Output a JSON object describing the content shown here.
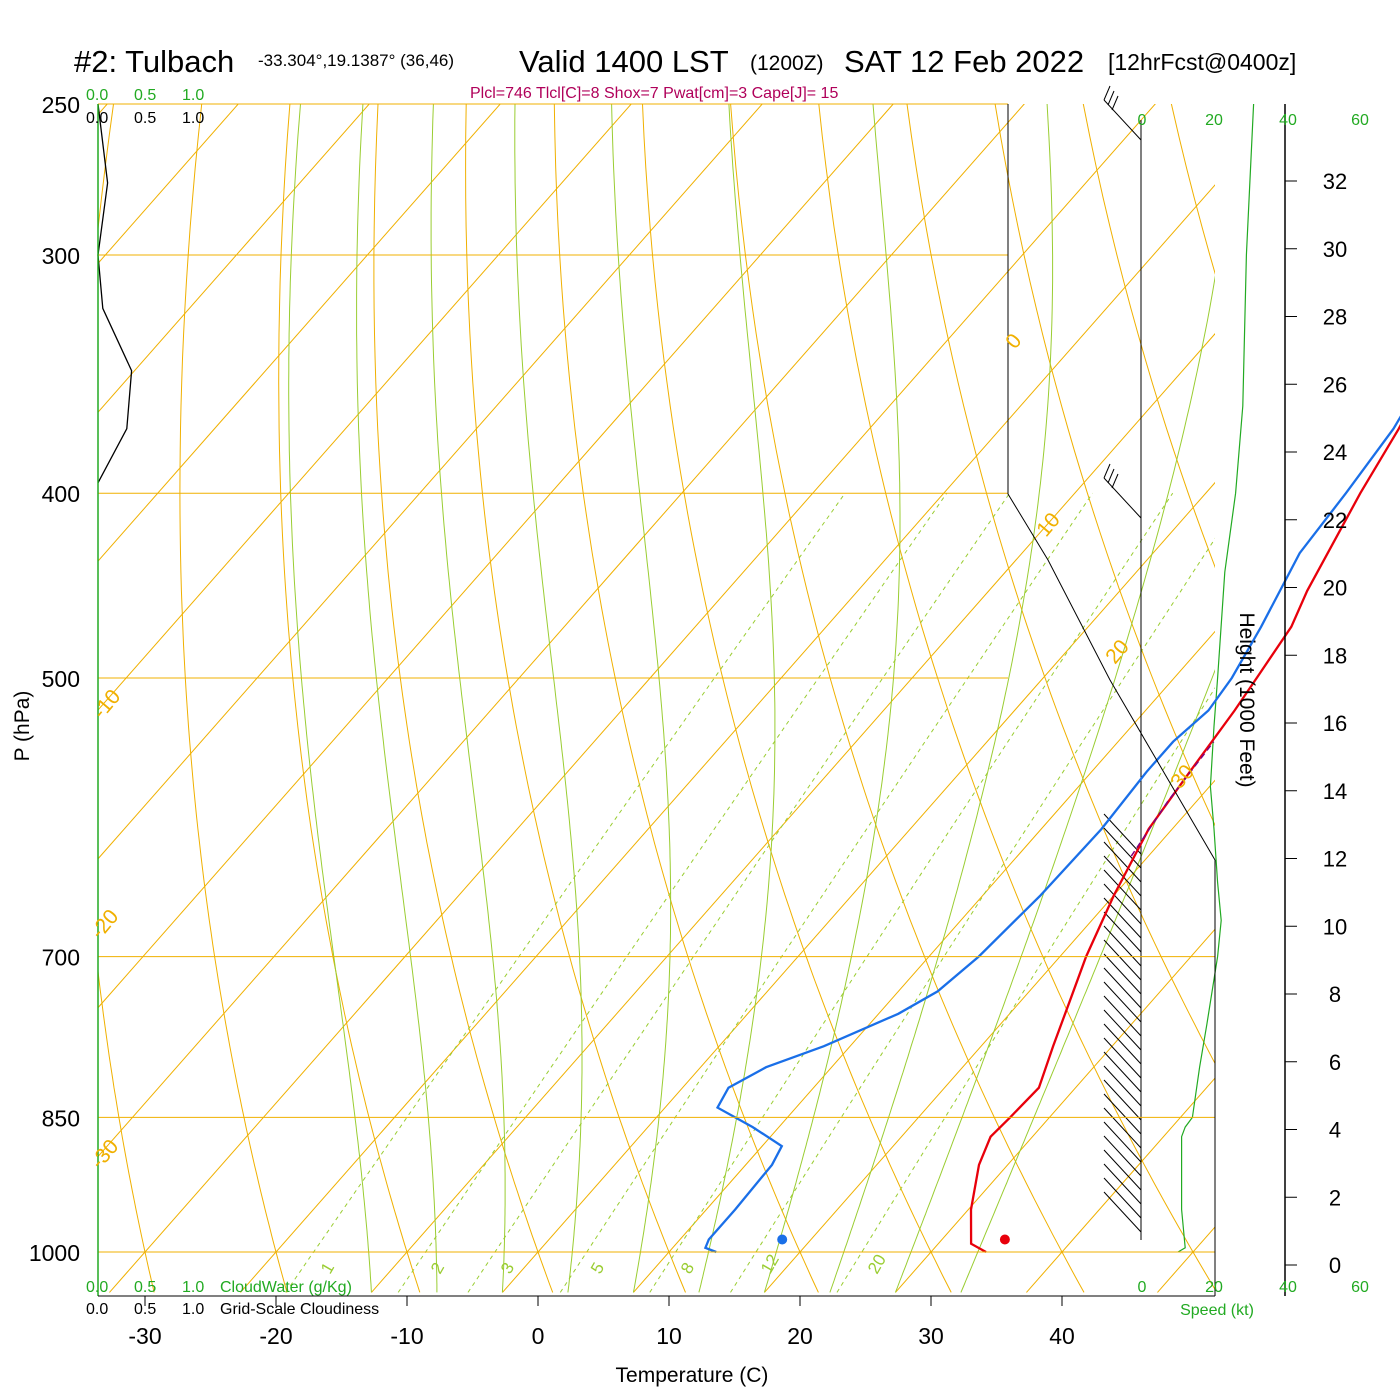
{
  "header": {
    "station": "#2: Tulbach",
    "coords": "-33.304°,19.1387° (36,46)",
    "valid": "Valid 1400 LST",
    "zulu": "(1200Z)",
    "date": "SAT 12 Feb 2022",
    "forecast": "[12hrFcst@0400z]",
    "indices": "Plcl=746 Tlcl[C]=8 Shox=7 Pwat[cm]=3 Cape[J]= 15"
  },
  "colors": {
    "temperature": "#e8000b",
    "dewpoint": "#1a6fe8",
    "isotherm": "#f0b000",
    "dry_adiabat": "#f0b000",
    "moist_adiabat": "#9acd32",
    "mixing_ratio": "#9acd32",
    "parcel": "#800080",
    "green_text": "#22aa22",
    "indices_text": "#b0005a"
  },
  "labels": {
    "x_axis": "Temperature (C)",
    "y_axis": "P (hPa)",
    "height_axis": "Height (1000 Feet)",
    "speed_axis": "Speed (kt)",
    "cloud_water": "CloudWater (g/Kg)",
    "cloudiness": "Grid-Scale Cloudiness"
  },
  "scales": {
    "cloud_green": [
      "0.0",
      "0.5",
      "1.0"
    ],
    "cloud_black": [
      "0.0",
      "0.5",
      "1.0"
    ],
    "speed_ticks": [
      "0",
      "20",
      "40",
      "60"
    ]
  },
  "chart_data": {
    "type": "line",
    "title": "#2: Tulbach Valid 1400 LST (1200Z) SAT 12 Feb 2022 [12hrFcst@0400z]",
    "xlabel": "Temperature (C)",
    "ylabel": "P (hPa)",
    "x_ticks": [
      -30,
      -20,
      -10,
      0,
      10,
      20,
      30,
      40
    ],
    "pressure_ticks": [
      250,
      300,
      400,
      500,
      700,
      850,
      1000
    ],
    "height_ticks": [
      0,
      2,
      4,
      6,
      8,
      10,
      12,
      14,
      16,
      18,
      20,
      22,
      24,
      26,
      28,
      30,
      32
    ],
    "isotherm_labels": [
      "-30",
      "-20",
      "-10",
      "0",
      "10",
      "20",
      "30"
    ],
    "isotherm_label_values": [
      -30,
      -20,
      -10,
      0,
      10,
      20,
      30
    ],
    "mixing_ratio_labels": [
      "1",
      "2",
      "3",
      "5",
      "8",
      "12",
      "20"
    ],
    "series": [
      {
        "name": "Temperature",
        "points": [
          [
            1000,
            34.2
          ],
          [
            990,
            32.5
          ],
          [
            950,
            30.2
          ],
          [
            900,
            27.8
          ],
          [
            870,
            26.8
          ],
          [
            850,
            27.0
          ],
          [
            820,
            27.2
          ],
          [
            780,
            25.5
          ],
          [
            740,
            23.8
          ],
          [
            700,
            22.0
          ],
          [
            650,
            20.0
          ],
          [
            600,
            18.2
          ],
          [
            560,
            17.5
          ],
          [
            520,
            16.8
          ],
          [
            500,
            16.3
          ],
          [
            470,
            15.5
          ],
          [
            450,
            14.3
          ],
          [
            400,
            11.8
          ],
          [
            370,
            10.4
          ],
          [
            350,
            9.2
          ],
          [
            300,
            6.2
          ],
          [
            260,
            4.0
          ]
        ]
      },
      {
        "name": "Dew point",
        "points": [
          [
            1000,
            13.6
          ],
          [
            995,
            12.5
          ],
          [
            985,
            12.2
          ],
          [
            950,
            12.2
          ],
          [
            900,
            12.0
          ],
          [
            880,
            11.5
          ],
          [
            860,
            8.0
          ],
          [
            840,
            4.0
          ],
          [
            820,
            3.5
          ],
          [
            800,
            5.0
          ],
          [
            780,
            8.0
          ],
          [
            750,
            11.5
          ],
          [
            730,
            13.0
          ],
          [
            700,
            13.8
          ],
          [
            650,
            14.4
          ],
          [
            600,
            14.6
          ],
          [
            560,
            14.2
          ],
          [
            540,
            14.2
          ],
          [
            520,
            14.8
          ],
          [
            500,
            14.4
          ],
          [
            470,
            13.2
          ],
          [
            430,
            11.2
          ],
          [
            400,
            10.7
          ],
          [
            370,
            10.0
          ],
          [
            350,
            9.0
          ],
          [
            300,
            4.5
          ],
          [
            270,
            1.7
          ],
          [
            260,
            -0.7
          ]
        ]
      },
      {
        "name": "Parcel",
        "points": [
          [
            620,
            18.7
          ],
          [
            580,
            17.8
          ],
          [
            540,
            17.3
          ]
        ]
      }
    ],
    "surface_temperature": 34.8,
    "surface_dewpoint": 17.8,
    "cloudiness_profile": [
      [
        250,
        0.0
      ],
      [
        275,
        0.1
      ],
      [
        300,
        0.0
      ],
      [
        320,
        0.05
      ],
      [
        345,
        0.35
      ],
      [
        370,
        0.3
      ],
      [
        395,
        0.0
      ]
    ],
    "wind_speed_profile": [
      [
        1000,
        10
      ],
      [
        995,
        12
      ],
      [
        950,
        11
      ],
      [
        870,
        11
      ],
      [
        860,
        12
      ],
      [
        850,
        14
      ],
      [
        800,
        16
      ],
      [
        760,
        18
      ],
      [
        700,
        21
      ],
      [
        670,
        22
      ],
      [
        640,
        21
      ],
      [
        600,
        20
      ],
      [
        570,
        19
      ],
      [
        530,
        20
      ],
      [
        500,
        21
      ],
      [
        440,
        23
      ],
      [
        400,
        26
      ],
      [
        360,
        28
      ],
      [
        300,
        29
      ],
      [
        250,
        31
      ]
    ]
  }
}
